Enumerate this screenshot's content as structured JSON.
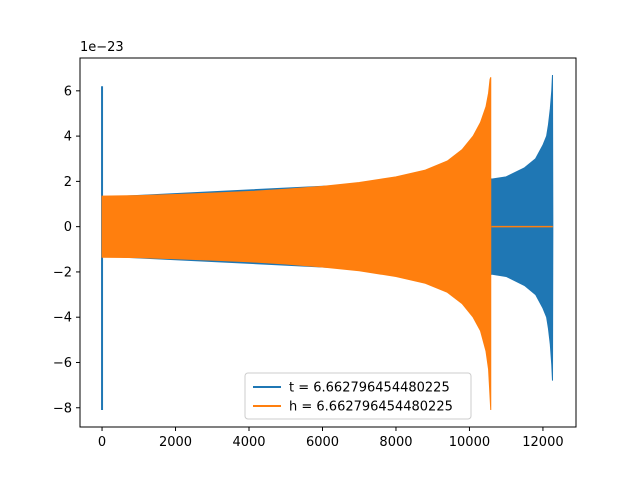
{
  "chart_data": {
    "type": "line",
    "title": "",
    "xlabel": "",
    "ylabel": "",
    "y_offset_label": "1e−23",
    "xlim": [
      -600,
      12900
    ],
    "ylim": [
      -8.85,
      7.45
    ],
    "xticks": [
      0,
      2000,
      4000,
      6000,
      8000,
      10000,
      12000
    ],
    "xtick_labels": [
      "0",
      "2000",
      "4000",
      "6000",
      "8000",
      "10000",
      "12000"
    ],
    "yticks": [
      -8,
      -6,
      -4,
      -2,
      0,
      2,
      4,
      6
    ],
    "ytick_labels": [
      "−8",
      "−6",
      "−4",
      "−2",
      "0",
      "2",
      "4",
      "6"
    ],
    "grid": false,
    "legend_position": "lower center",
    "series": [
      {
        "name": "t = 6.662796454480225",
        "color": "#1f77b4",
        "envelope": {
          "x": [
            0,
            10550,
            10600,
            11000,
            11500,
            11800,
            12000,
            12100,
            12150,
            12200,
            12240,
            12260,
            12270
          ],
          "upper": [
            1.3,
            2.15,
            2.1,
            2.2,
            2.6,
            3.0,
            3.6,
            4.0,
            4.5,
            5.2,
            6.0,
            6.7,
            0
          ],
          "lower": [
            -1.3,
            -2.15,
            -2.1,
            -2.2,
            -2.6,
            -3.0,
            -3.6,
            -4.0,
            -4.5,
            -5.2,
            -6.1,
            -6.8,
            0
          ]
        },
        "spike": {
          "x": 0,
          "max": 6.2,
          "min": -8.1
        }
      },
      {
        "name": "h = 6.662796454480225",
        "color": "#ff7f0e",
        "envelope": {
          "x": [
            0,
            1000,
            2000,
            3000,
            4000,
            5000,
            6000,
            7000,
            8000,
            8800,
            9400,
            9800,
            10100,
            10300,
            10450,
            10520,
            10560,
            10580
          ],
          "upper": [
            1.35,
            1.37,
            1.42,
            1.48,
            1.55,
            1.65,
            1.78,
            1.95,
            2.2,
            2.5,
            2.9,
            3.4,
            4.0,
            4.6,
            5.3,
            5.9,
            6.5,
            6.6
          ],
          "lower": [
            -1.35,
            -1.37,
            -1.42,
            -1.48,
            -1.55,
            -1.65,
            -1.78,
            -1.95,
            -2.2,
            -2.5,
            -2.9,
            -3.4,
            -4.0,
            -4.6,
            -5.5,
            -6.3,
            -7.5,
            -8.1
          ]
        },
        "flat_after": {
          "x_start": 10600,
          "x_end": 12270,
          "y": 0
        }
      }
    ]
  }
}
